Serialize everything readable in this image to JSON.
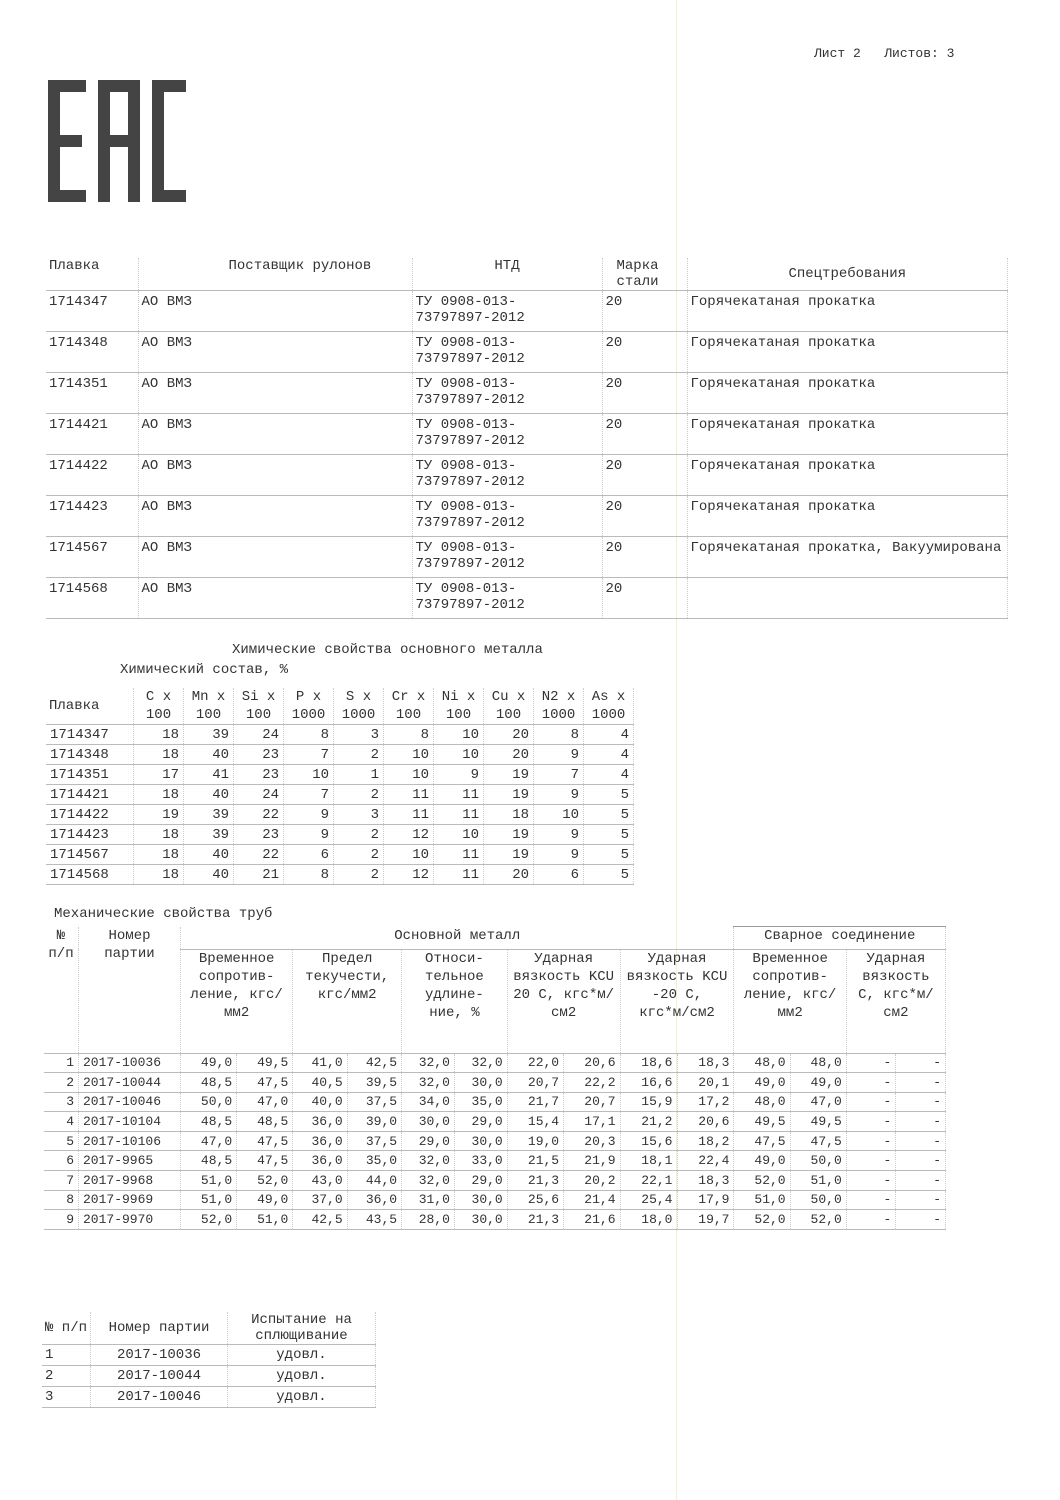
{
  "sheet": {
    "label": "Лист 2",
    "total": "Листов: 3"
  },
  "logo": "EAC",
  "heats_table": {
    "headers": [
      "Плавка",
      "Поставщик рулонов",
      "НТД",
      "Марка стали",
      "Спецтребования"
    ],
    "rows": [
      [
        "1714347",
        "АО ВМЗ",
        "ТУ 0908-013-73797897-2012",
        "20",
        "Горячекатаная прокатка"
      ],
      [
        "1714348",
        "АО ВМЗ",
        "ТУ 0908-013-73797897-2012",
        "20",
        "Горячекатаная прокатка"
      ],
      [
        "1714351",
        "АО ВМЗ",
        "ТУ 0908-013-73797897-2012",
        "20",
        "Горячекатаная прокатка"
      ],
      [
        "1714421",
        "АО ВМЗ",
        "ТУ 0908-013-73797897-2012",
        "20",
        "Горячекатаная прокатка"
      ],
      [
        "1714422",
        "АО ВМЗ",
        "ТУ 0908-013-73797897-2012",
        "20",
        "Горячекатаная прокатка"
      ],
      [
        "1714423",
        "АО ВМЗ",
        "ТУ 0908-013-73797897-2012",
        "20",
        "Горячекатаная прокатка"
      ],
      [
        "1714567",
        "АО ВМЗ",
        "ТУ 0908-013-73797897-2012",
        "20",
        "Горячекатаная прокатка, Вакуумирована"
      ],
      [
        "1714568",
        "АО ВМЗ",
        "ТУ 0908-013-73797897-2012",
        "20",
        ""
      ]
    ]
  },
  "chem": {
    "title": "Химические свойства основного металла",
    "subtitle": "Химический состав, %",
    "headers": [
      "Плавка",
      "C x 100",
      "Mn x 100",
      "Si x 100",
      "P x 1000",
      "S x 1000",
      "Cr x 100",
      "Ni x 100",
      "Cu x 100",
      "N2 x 1000",
      "As x 1000"
    ],
    "rows": [
      [
        "1714347",
        "18",
        "39",
        "24",
        "8",
        "3",
        "8",
        "10",
        "20",
        "8",
        "4"
      ],
      [
        "1714348",
        "18",
        "40",
        "23",
        "7",
        "2",
        "10",
        "10",
        "20",
        "9",
        "4"
      ],
      [
        "1714351",
        "17",
        "41",
        "23",
        "10",
        "1",
        "10",
        "9",
        "19",
        "7",
        "4"
      ],
      [
        "1714421",
        "18",
        "40",
        "24",
        "7",
        "2",
        "11",
        "11",
        "19",
        "9",
        "5"
      ],
      [
        "1714422",
        "19",
        "39",
        "22",
        "9",
        "3",
        "11",
        "11",
        "18",
        "10",
        "5"
      ],
      [
        "1714423",
        "18",
        "39",
        "23",
        "9",
        "2",
        "12",
        "10",
        "19",
        "9",
        "5"
      ],
      [
        "1714567",
        "18",
        "40",
        "22",
        "6",
        "2",
        "10",
        "11",
        "19",
        "9",
        "5"
      ],
      [
        "1714568",
        "18",
        "40",
        "21",
        "8",
        "2",
        "12",
        "11",
        "20",
        "6",
        "5"
      ]
    ]
  },
  "mech": {
    "title": "Механические свойства труб",
    "h_num": "№ п/п",
    "h_batch": "Номер партии",
    "h_base": "Основной металл",
    "h_weld": "Сварное соединение",
    "sub": [
      "Временное сопротив- ление, кгс/мм2",
      "Предел текучести, кгс/мм2",
      "Относи- тельное удлине- ние, %",
      "Ударная вязкость KCU 20 С, кгс*м/см2",
      "Ударная вязкость KCU -20 С, кгс*м/см2",
      "Временное сопротив- ление, кгс/мм2",
      "Ударная вязкость С, кгс*м/см2"
    ],
    "rows": [
      [
        "1",
        "2017-10036",
        "49,0",
        "49,5",
        "41,0",
        "42,5",
        "32,0",
        "32,0",
        "22,0",
        "20,6",
        "18,6",
        "18,3",
        "48,0",
        "48,0",
        "-",
        "-"
      ],
      [
        "2",
        "2017-10044",
        "48,5",
        "47,5",
        "40,5",
        "39,5",
        "32,0",
        "30,0",
        "20,7",
        "22,2",
        "16,6",
        "20,1",
        "49,0",
        "49,0",
        "-",
        "-"
      ],
      [
        "3",
        "2017-10046",
        "50,0",
        "47,0",
        "40,0",
        "37,5",
        "34,0",
        "35,0",
        "21,7",
        "20,7",
        "15,9",
        "17,2",
        "48,0",
        "47,0",
        "-",
        "-"
      ],
      [
        "4",
        "2017-10104",
        "48,5",
        "48,5",
        "36,0",
        "39,0",
        "30,0",
        "29,0",
        "15,4",
        "17,1",
        "21,2",
        "20,6",
        "49,5",
        "49,5",
        "-",
        "-"
      ],
      [
        "5",
        "2017-10106",
        "47,0",
        "47,5",
        "36,0",
        "37,5",
        "29,0",
        "30,0",
        "19,0",
        "20,3",
        "15,6",
        "18,2",
        "47,5",
        "47,5",
        "-",
        "-"
      ],
      [
        "6",
        "2017-9965",
        "48,5",
        "47,5",
        "36,0",
        "35,0",
        "32,0",
        "33,0",
        "21,5",
        "21,9",
        "18,1",
        "22,4",
        "49,0",
        "50,0",
        "-",
        "-"
      ],
      [
        "7",
        "2017-9968",
        "51,0",
        "52,0",
        "43,0",
        "44,0",
        "32,0",
        "29,0",
        "21,3",
        "20,2",
        "22,1",
        "18,3",
        "52,0",
        "51,0",
        "-",
        "-"
      ],
      [
        "8",
        "2017-9969",
        "51,0",
        "49,0",
        "37,0",
        "36,0",
        "31,0",
        "30,0",
        "25,6",
        "21,4",
        "25,4",
        "17,9",
        "51,0",
        "50,0",
        "-",
        "-"
      ],
      [
        "9",
        "2017-9970",
        "52,0",
        "51,0",
        "42,5",
        "43,5",
        "28,0",
        "30,0",
        "21,3",
        "21,6",
        "18,0",
        "19,7",
        "52,0",
        "52,0",
        "-",
        "-"
      ]
    ]
  },
  "flat": {
    "headers": [
      "№ п/п",
      "Номер партии",
      "Испытание на сплющивание"
    ],
    "rows": [
      [
        "1",
        "2017-10036",
        "удовл."
      ],
      [
        "2",
        "2017-10044",
        "удовл."
      ],
      [
        "3",
        "2017-10046",
        "удовл."
      ]
    ]
  }
}
